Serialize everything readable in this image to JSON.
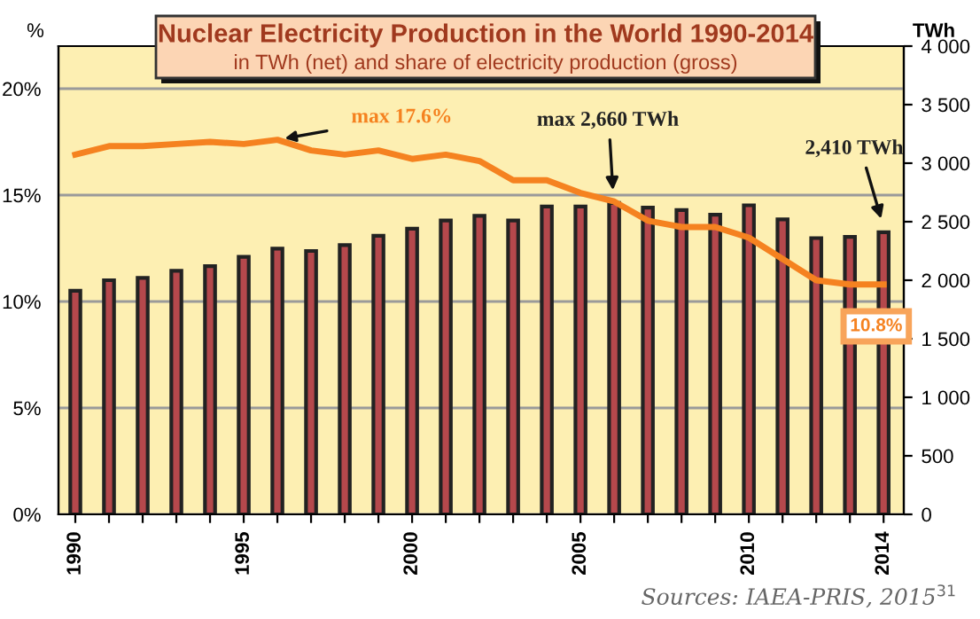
{
  "chart_data": {
    "type": "bar",
    "title": "Nuclear Electricity Production in the World 1990-2014",
    "subtitle": "in TWh (net) and share of electricity production (gross)",
    "x": [
      1990,
      1991,
      1992,
      1993,
      1994,
      1995,
      1996,
      1997,
      1998,
      1999,
      2000,
      2001,
      2002,
      2003,
      2004,
      2005,
      2006,
      2007,
      2008,
      2009,
      2010,
      2011,
      2012,
      2013,
      2014
    ],
    "series": [
      {
        "axis": "y2",
        "color": "#b5484c",
        "values": [
          1910,
          2000,
          2020,
          2080,
          2120,
          2200,
          2270,
          2250,
          2300,
          2380,
          2440,
          2510,
          2550,
          2510,
          2630,
          2630,
          2660,
          2620,
          2600,
          2560,
          2640,
          2520,
          2360,
          2370,
          2410
        ]
      },
      {
        "type": "line",
        "color": "#f58220",
        "values": [
          16.9,
          17.3,
          17.3,
          17.4,
          17.5,
          17.4,
          17.6,
          17.1,
          16.9,
          17.1,
          16.7,
          16.9,
          16.6,
          15.7,
          15.7,
          15.1,
          14.7,
          13.8,
          13.5,
          13.5,
          13.0,
          12.0,
          11.0,
          10.8,
          10.8
        ]
      }
    ],
    "xlim": [
      1989.5,
      2014.6
    ],
    "xticks": [
      1990,
      {
        "value": 1991,
        "label": null
      },
      {
        "value": 1992,
        "label": null
      },
      {
        "value": 1993,
        "label": null
      },
      {
        "value": 1994,
        "label": null
      },
      1995,
      {
        "value": 1996,
        "label": null
      },
      {
        "value": 1997,
        "label": null
      },
      {
        "value": 1998,
        "label": null
      },
      {
        "value": 1999,
        "label": null
      },
      2000,
      {
        "value": 2001,
        "label": null
      },
      {
        "value": 2002,
        "label": null
      },
      {
        "value": 2003,
        "label": null
      },
      {
        "value": 2004,
        "label": null
      },
      2005,
      {
        "value": 2006,
        "label": null
      },
      {
        "value": 2007,
        "label": null
      },
      {
        "value": 2008,
        "label": null
      },
      {
        "value": 2009,
        "label": null
      },
      2010,
      {
        "value": 2011,
        "label": null
      },
      {
        "value": 2012,
        "label": null
      },
      {
        "value": 2013,
        "label": null
      },
      2014
    ],
    "ylabel": "%",
    "y2label": "TWh",
    "ylim": [
      0,
      22
    ],
    "yticks": [
      {
        "value": 0,
        "label": "0%"
      },
      {
        "value": 5,
        "label": "5%"
      },
      {
        "value": 10,
        "label": "10%"
      },
      {
        "value": 15,
        "label": "15%"
      },
      {
        "value": 20,
        "label": "20%"
      }
    ],
    "y2lim": [
      0,
      4000
    ],
    "y2ticks": [
      0,
      500,
      {
        "value": 1000,
        "label": "1 000"
      },
      {
        "value": 1500,
        "label": "1 500"
      },
      {
        "value": 2000,
        "label": "2 000"
      },
      {
        "value": 2500,
        "label": "2 500"
      },
      {
        "value": 3000,
        "label": "3 000"
      },
      {
        "value": 3500,
        "label": "3 500"
      },
      {
        "value": 4000,
        "label": "4 000"
      }
    ],
    "grid": "y",
    "annotations": [
      {
        "text": "max 17.6%",
        "x": 1996,
        "y": 17.6
      },
      "max 2,660 TWh",
      "2,410 TWh",
      {
        "text": "10.8%",
        "x": 2014,
        "y": 10.8
      },
      "Sources: IAEA-PRIS, 2015$^{31}$"
    ]
  }
}
